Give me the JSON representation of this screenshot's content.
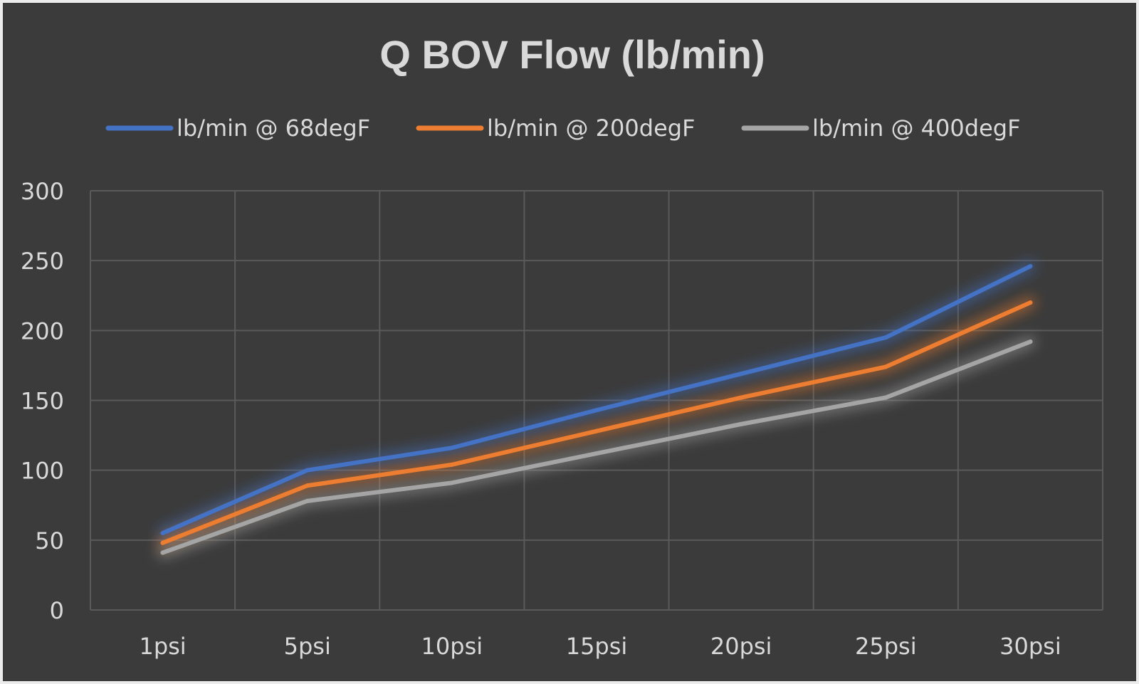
{
  "chart_data": {
    "type": "line",
    "title": "Q BOV Flow (lb/min)",
    "categories": [
      "1psi",
      "5psi",
      "10psi",
      "15psi",
      "20psi",
      "25psi",
      "30psi"
    ],
    "series": [
      {
        "name": "lb/min @ 68degF",
        "color": "#4472c4",
        "values": [
          55,
          100,
          116,
          143,
          169,
          195,
          246
        ]
      },
      {
        "name": "lb/min @ 200degF",
        "color": "#ed7d31",
        "values": [
          48,
          89,
          104,
          128,
          152,
          174,
          220
        ]
      },
      {
        "name": "lb/min @ 400degF",
        "color": "#a5a5a5",
        "values": [
          41,
          78,
          91,
          112,
          133,
          152,
          192
        ]
      }
    ],
    "yticks": [
      "0",
      "50",
      "100",
      "150",
      "200",
      "250",
      "300"
    ],
    "ylim": [
      0,
      300
    ],
    "grid": true,
    "legend": "top"
  }
}
